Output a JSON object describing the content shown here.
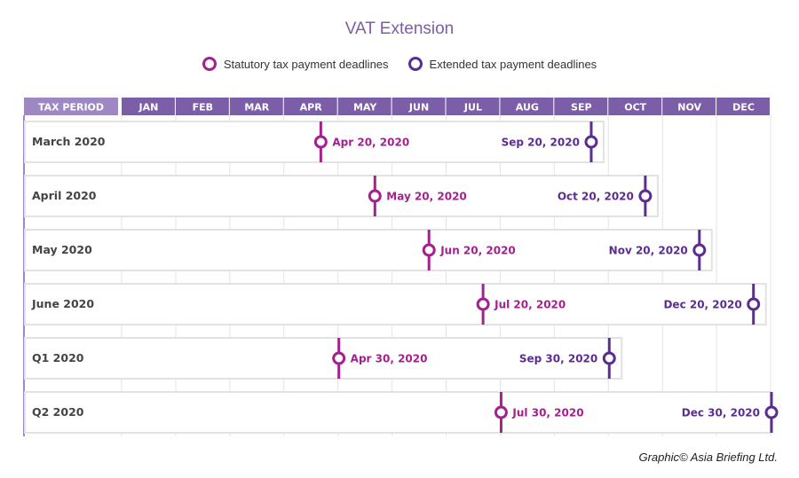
{
  "chart_data": {
    "type": "timeline",
    "title": "VAT Extension",
    "legend": [
      {
        "name": "Statutory tax payment deadlines",
        "color": "#a3208f"
      },
      {
        "name": "Extended tax payment deadlines",
        "color": "#5b2c91"
      }
    ],
    "legend_placement": "top",
    "header_label": "TAX PERIOD",
    "months": [
      "JAN",
      "FEB",
      "MAR",
      "APR",
      "MAY",
      "JUN",
      "JUL",
      "AUG",
      "SEP",
      "OCT",
      "NOV",
      "DEC"
    ],
    "rows": [
      {
        "period": "March 2020",
        "statutory": "2020-04-20",
        "statutory_label": "Apr 20, 2020",
        "extended": "2020-09-20",
        "extended_label": "Sep 20, 2020"
      },
      {
        "period": "April 2020",
        "statutory": "2020-05-20",
        "statutory_label": "May 20, 2020",
        "extended": "2020-10-20",
        "extended_label": "Oct 20, 2020"
      },
      {
        "period": "May 2020",
        "statutory": "2020-06-20",
        "statutory_label": "Jun 20, 2020",
        "extended": "2020-11-20",
        "extended_label": "Nov 20, 2020"
      },
      {
        "period": "June 2020",
        "statutory": "2020-07-20",
        "statutory_label": "Jul 20, 2020",
        "extended": "2020-12-20",
        "extended_label": "Dec 20, 2020"
      },
      {
        "period": "Q1 2020",
        "statutory": "2020-04-30",
        "statutory_label": "Apr 30, 2020",
        "extended": "2020-09-30",
        "extended_label": "Sep 30, 2020"
      },
      {
        "period": "Q2 2020",
        "statutory": "2020-07-30",
        "statutory_label": "Jul 30, 2020",
        "extended": "2020-12-30",
        "extended_label": "Dec 30, 2020"
      }
    ],
    "colors": {
      "header": "#7b5ea7",
      "header_label_bg": "#9d88c4"
    }
  },
  "credit": "Graphic© Asia Briefing Ltd."
}
